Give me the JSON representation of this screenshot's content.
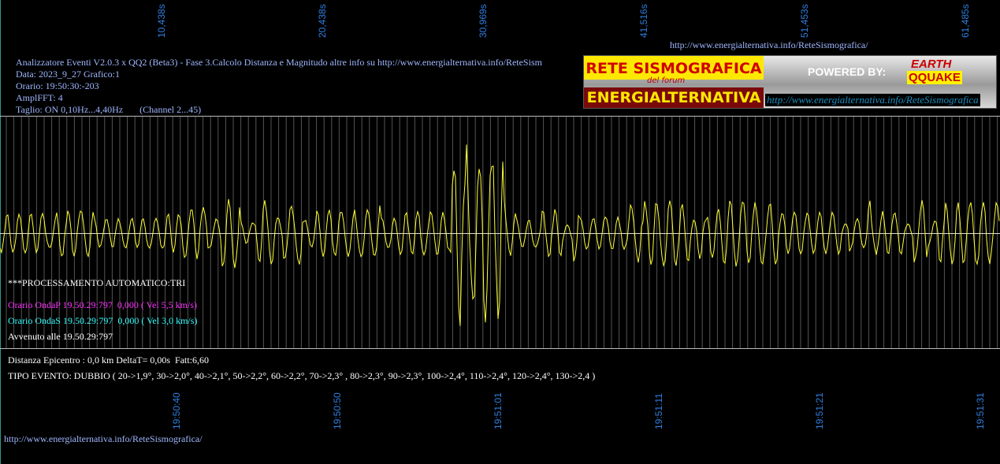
{
  "top_ticks": [
    "10,438s",
    "20,438s",
    "30,969s",
    "41,516s",
    "51,453s",
    "61,485s"
  ],
  "header_url": "http://www.energialternativa.info/ReteSismografica/",
  "info": [
    "Analizzatore Eventi V2.0.3 x QQ2 (Beta3) - Fase 3.Calcolo Distanza e Magnitudo altre info su http://www.energialternativa.info/ReteSism",
    "Data: 2023_9_27 Grafico:1",
    "Orario: 19:50:30:-203",
    "AmplFFT: 4",
    "Taglio: ON 0,10Hz...4,40Hz       (Channel 2...45)"
  ],
  "logo": {
    "title": "RETE SISMOGRAFICA",
    "subtitle": "del forum",
    "name": "ENERGIALTERNATIVA",
    "powered": "POWERED BY:",
    "brand_top": "EARTH",
    "brand_bottom": "QQUAKE",
    "url": "http://www.energialternativa.info/ReteSismografica"
  },
  "processing": {
    "title": "***PROCESSAMENTO AUTOMATICO:TRI",
    "onda_p": "Orario OndaP 19.50.29:797  0,000 ( Vel 5,5 km/s)",
    "onda_s": "Orario OndaS 19.50.29:797  0,000 ( Vel 3,0 km/s)",
    "event_time": "Avvenuto alle 19.50.29:797"
  },
  "result": {
    "distance": "Distanza Epicentro : 0,0 km DeltaT= 0,00s  Fatt:6,60",
    "event_type": "TIPO EVENTO: DUBBIO ( 20->1,9°, 30->2,0°, 40->2,1°, 50->2,2°, 60->2,2°, 70->2,3° , 80->2,3°, 90->2,3°, 100->2,4°, 110->2,4°, 120->2,4°, 130->2,4 )"
  },
  "bottom_ticks": [
    "19:50:40",
    "19:50:50",
    "19:51:01",
    "19:51:11",
    "19:51:21",
    "19:51:31"
  ],
  "footer_url": "http://www.energialternativa.info/ReteSismografica/"
}
